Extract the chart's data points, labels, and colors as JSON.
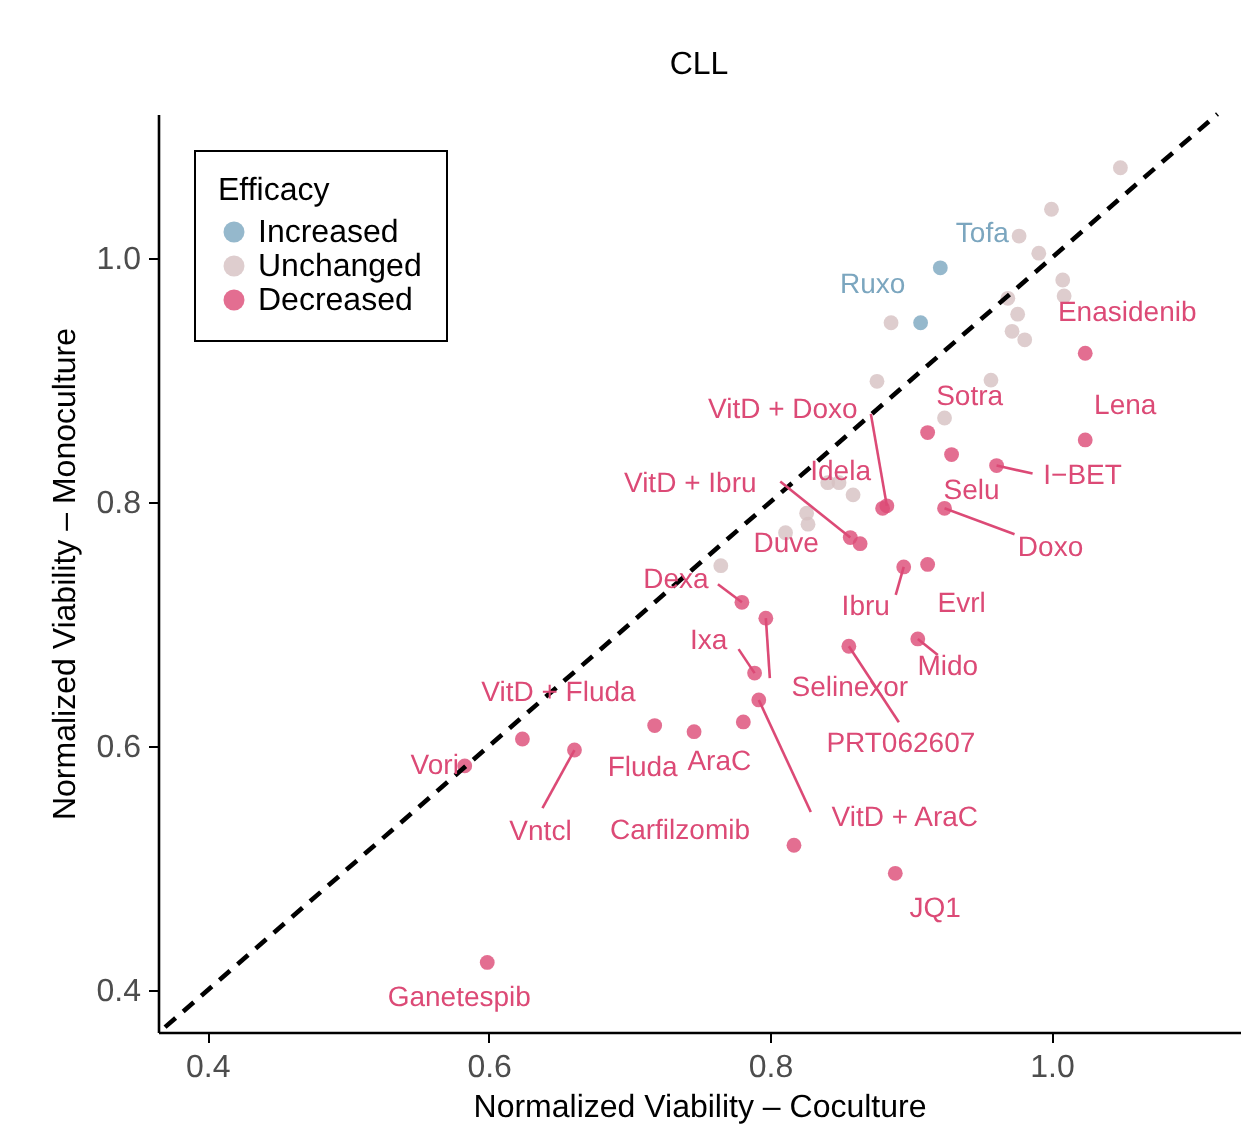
{
  "chart_data": {
    "type": "scatter",
    "title": "CLL",
    "xlabel": "Normalized Viability – Coculture",
    "ylabel": "Normalized Viability – Monoculture",
    "legend_title": "Efficacy",
    "legend": "top left",
    "grid": false,
    "xlim": [
      0.365,
      1.134
    ],
    "ylim": [
      0.366,
      1.118
    ],
    "xticks": [
      0.4,
      0.6,
      0.8,
      {
        "value": 1,
        "label": "1.0"
      }
    ],
    "yticks": [
      0.4,
      0.6,
      0.8,
      {
        "value": 1,
        "label": "1.0"
      }
    ],
    "series": [
      {
        "name": "Increased",
        "color": "#7ba6bf",
        "x": [
          0.921,
          0.907
        ],
        "values": [
          0.992,
          0.947
        ]
      },
      {
        "name": "Unchanged",
        "color": "#d6c0c2",
        "x": [
          1.049,
          1.0,
          0.977,
          0.991,
          1.008,
          1.009,
          0.969,
          0.976,
          0.972,
          0.981,
          0.886,
          0.957,
          0.876,
          0.924,
          0.841,
          0.849,
          0.859,
          0.826,
          0.827,
          0.811,
          0.765
        ],
        "values": [
          1.074,
          1.04,
          1.018,
          1.004,
          0.982,
          0.969,
          0.967,
          0.954,
          0.94,
          0.933,
          0.947,
          0.9,
          0.899,
          0.869,
          0.816,
          0.816,
          0.806,
          0.791,
          0.782,
          0.775,
          0.748
        ]
      },
      {
        "name": "Decreased",
        "color": "#dc4a76",
        "x": [
          1.024,
          1.024,
          0.912,
          0.961,
          0.929,
          0.924,
          0.883,
          0.88,
          0.857,
          0.864,
          0.78,
          0.895,
          0.912,
          0.789,
          0.797,
          0.905,
          0.856,
          0.781,
          0.792,
          0.817,
          0.889,
          0.624,
          0.661,
          0.718,
          0.583,
          0.599,
          0.746
        ],
        "values": [
          0.922,
          0.851,
          0.857,
          0.83,
          0.839,
          0.795,
          0.797,
          0.795,
          0.771,
          0.766,
          0.718,
          0.747,
          0.749,
          0.66,
          0.705,
          0.688,
          0.682,
          0.62,
          0.638,
          0.519,
          0.496,
          0.606,
          0.597,
          0.617,
          0.584,
          0.423,
          0.612
        ]
      },
      {
        "type": "line",
        "color": "#000000",
        "line_style": "dashed",
        "x": [
          0.37,
          1.118
        ],
        "values": [
          0.37,
          1.118
        ]
      }
    ],
    "annotations": [
      {
        "text": "Tofa",
        "x": 0.921,
        "y": 0.992
      },
      {
        "text": "Ruxo",
        "x": 0.907,
        "y": 0.947
      },
      {
        "text": "Enasidenib",
        "x": 1.024,
        "y": 0.922
      },
      {
        "text": "Lena",
        "x": 1.024,
        "y": 0.851
      },
      {
        "text": "Sotra",
        "x": 0.912,
        "y": 0.857
      },
      {
        "text": "I−BET",
        "x": 0.961,
        "y": 0.83
      },
      {
        "text": "Selu",
        "x": 0.929,
        "y": 0.839
      },
      {
        "text": "Doxo",
        "x": 0.924,
        "y": 0.795
      },
      {
        "text": "VitD + Doxo",
        "x": 0.883,
        "y": 0.797
      },
      {
        "text": "Idela",
        "x": 0.88,
        "y": 0.795
      },
      {
        "text": "VitD + Ibru",
        "x": 0.857,
        "y": 0.771
      },
      {
        "text": "Duve",
        "x": 0.864,
        "y": 0.766
      },
      {
        "text": "Dexa",
        "x": 0.78,
        "y": 0.718
      },
      {
        "text": "Ibru",
        "x": 0.895,
        "y": 0.747
      },
      {
        "text": "Evrl",
        "x": 0.912,
        "y": 0.749
      },
      {
        "text": "Ixa",
        "x": 0.789,
        "y": 0.66
      },
      {
        "text": "Selinexor",
        "x": 0.797,
        "y": 0.705
      },
      {
        "text": "Mido",
        "x": 0.905,
        "y": 0.688
      },
      {
        "text": "PRT062607",
        "x": 0.856,
        "y": 0.682
      },
      {
        "text": "AraC",
        "x": 0.781,
        "y": 0.62
      },
      {
        "text": "VitD + AraC",
        "x": 0.792,
        "y": 0.638
      },
      {
        "text": "Carfilzomib",
        "x": 0.817,
        "y": 0.519
      },
      {
        "text": "JQ1",
        "x": 0.889,
        "y": 0.496
      },
      {
        "text": "VitD + Fluda",
        "x": 0.624,
        "y": 0.606
      },
      {
        "text": "Vntcl",
        "x": 0.661,
        "y": 0.597
      },
      {
        "text": "Fluda",
        "x": 0.718,
        "y": 0.617
      },
      {
        "text": "Vori",
        "x": 0.583,
        "y": 0.584
      },
      {
        "text": "Ganetespib",
        "x": 0.599,
        "y": 0.423
      }
    ]
  }
}
